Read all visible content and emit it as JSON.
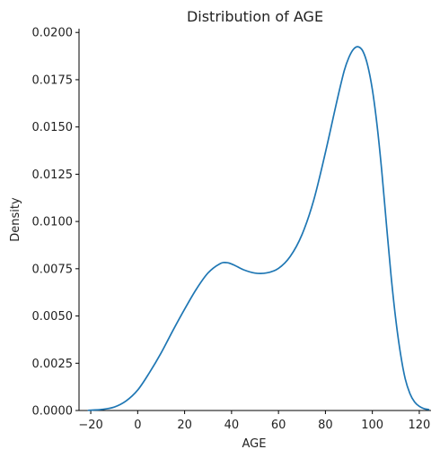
{
  "chart_data": {
    "type": "line",
    "title": "Distribution of AGE",
    "xlabel": "AGE",
    "ylabel": "Density",
    "xlim": [
      -25,
      125
    ],
    "ylim": [
      0,
      0.0202
    ],
    "xticks": [
      -20,
      0,
      20,
      40,
      60,
      80,
      100,
      120
    ],
    "yticks": [
      0.0,
      0.0025,
      0.005,
      0.0075,
      0.01,
      0.0125,
      0.015,
      0.0175,
      0.02
    ],
    "xtick_labels": [
      "−20",
      "0",
      "20",
      "40",
      "60",
      "80",
      "100",
      "120"
    ],
    "ytick_labels": [
      "0.0000",
      "0.0025",
      "0.0050",
      "0.0075",
      "0.0100",
      "0.0125",
      "0.0150",
      "0.0175",
      "0.0200"
    ],
    "grid": false,
    "series": [
      {
        "color": "#1f77b4",
        "x": [
          -21,
          -15,
          -10,
          -5,
          0,
          5,
          10,
          15,
          20,
          25,
          30,
          35,
          38,
          41,
          45,
          50,
          55,
          60,
          65,
          70,
          75,
          80,
          85,
          88,
          90,
          92,
          94,
          96,
          98,
          100,
          102,
          104,
          106,
          108,
          110,
          112,
          114,
          116,
          118,
          120,
          122,
          124
        ],
        "y": [
          1e-05,
          6e-05,
          0.00018,
          0.0005,
          0.00108,
          0.002,
          0.00305,
          0.00423,
          0.00536,
          0.00642,
          0.00728,
          0.00776,
          0.00782,
          0.0077,
          0.00745,
          0.00727,
          0.00728,
          0.00752,
          0.00815,
          0.0093,
          0.01112,
          0.01365,
          0.01643,
          0.01797,
          0.01868,
          0.01912,
          0.01924,
          0.019,
          0.01826,
          0.01698,
          0.0151,
          0.01268,
          0.00985,
          0.0071,
          0.0048,
          0.003,
          0.00168,
          0.0009,
          0.00045,
          0.00022,
          0.0001,
          5e-05
        ]
      }
    ]
  }
}
